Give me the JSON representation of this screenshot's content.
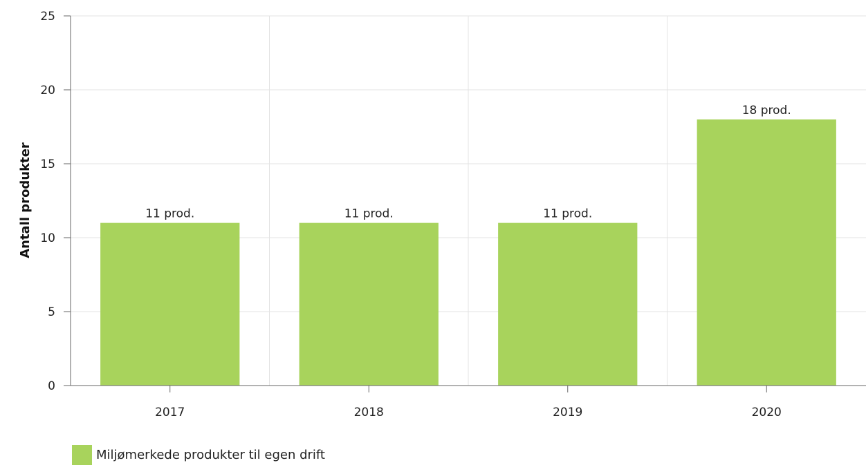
{
  "chart_data": {
    "type": "bar",
    "categories": [
      "2017",
      "2018",
      "2019",
      "2020"
    ],
    "series": [
      {
        "name": "Miljømerkede produkter til egen drift",
        "values": [
          11,
          11,
          11,
          18
        ],
        "color": "#a8d35c"
      }
    ],
    "data_labels": [
      "11 prod.",
      "11 prod.",
      "11 prod.",
      "18 prod."
    ],
    "ylabel": "Antall produkter",
    "xlabel": "",
    "title": "",
    "ylim": [
      0,
      25
    ],
    "yticks": [
      0,
      5,
      10,
      15,
      20,
      25
    ],
    "grid": true,
    "legend_position": "bottom-left"
  }
}
